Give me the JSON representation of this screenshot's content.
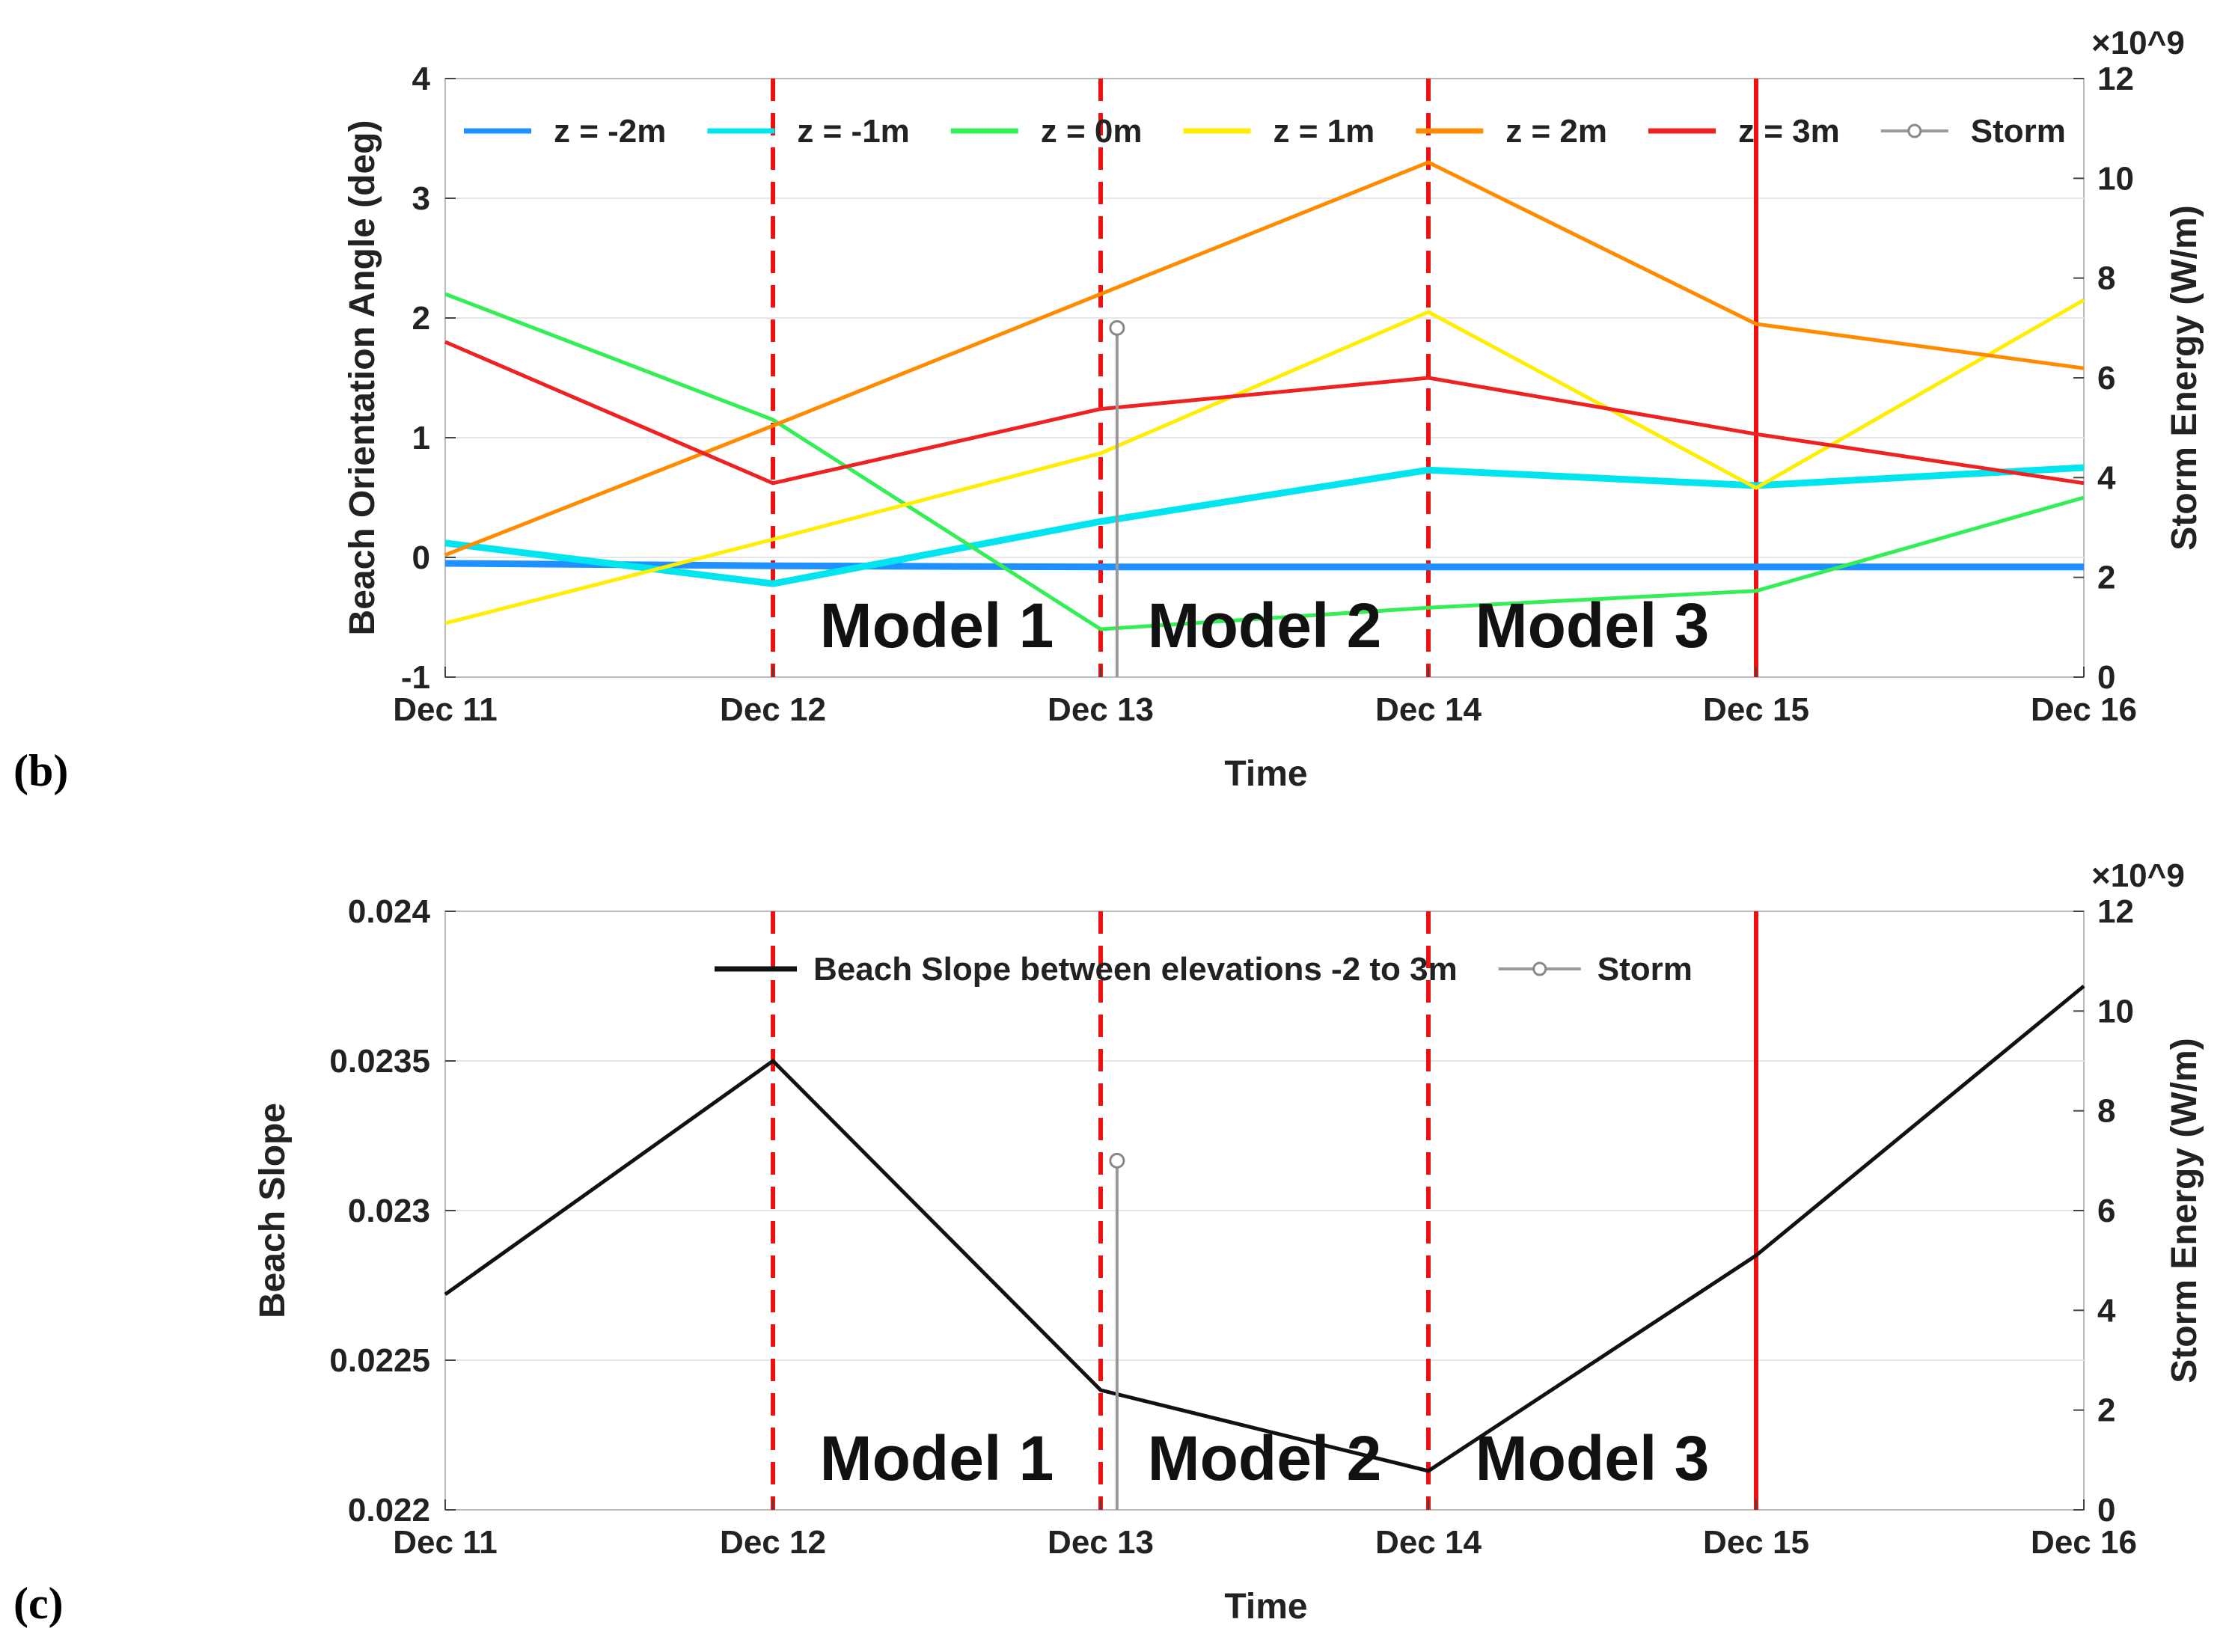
{
  "chart_data": [
    {
      "panel": "(b)",
      "type": "line",
      "xlabel": "Time",
      "ylabel": "Beach Orientation Angle (deg)",
      "ylabel_right": "Storm Energy (W/m)",
      "right_multiplier": "×10^9",
      "categories": [
        "Dec 11",
        "Dec 12",
        "Dec 13",
        "Dec 14",
        "Dec 15",
        "Dec 16"
      ],
      "ylim": [
        -1,
        4
      ],
      "yticks": [
        "-1",
        "0",
        "1",
        "2",
        "3",
        "4"
      ],
      "ylim_right": [
        0,
        12
      ],
      "yticks_right": [
        "0",
        "2",
        "4",
        "6",
        "8",
        "10",
        "12"
      ],
      "grid": true,
      "legend_placement": "top",
      "series": [
        {
          "name": "z = -2m",
          "color": "#1e90ff",
          "width": "thick",
          "values": [
            -0.05,
            -0.07,
            -0.08,
            -0.08,
            -0.08,
            -0.08
          ]
        },
        {
          "name": "z = -1m",
          "color": "#00e5ee",
          "width": "thick",
          "values": [
            0.12,
            -0.22,
            0.3,
            0.73,
            0.6,
            0.75
          ]
        },
        {
          "name": "z = 0m",
          "color": "#33ee55",
          "width": "thin",
          "values": [
            2.2,
            1.15,
            -0.6,
            -0.42,
            -0.28,
            0.5
          ]
        },
        {
          "name": "z = 1m",
          "color": "#ffee00",
          "width": "thin",
          "values": [
            -0.55,
            0.15,
            0.87,
            2.05,
            0.58,
            2.15
          ]
        },
        {
          "name": "z = 2m",
          "color": "#ff8c00",
          "width": "thin",
          "values": [
            0.02,
            1.1,
            2.2,
            3.3,
            1.95,
            1.58
          ]
        },
        {
          "name": "z = 3m",
          "color": "#ee2222",
          "width": "thin",
          "values": [
            1.8,
            0.62,
            1.24,
            1.5,
            1.03,
            0.62
          ]
        }
      ],
      "storm": {
        "name": "Storm",
        "color": "#999999",
        "x": 2.05,
        "energy": 7.0
      },
      "vlines_dashed": [
        1,
        2,
        3
      ],
      "vline_solid": 4,
      "model_labels": [
        {
          "text": "Model 1",
          "x": 1.5
        },
        {
          "text": "Model 2",
          "x": 2.5
        },
        {
          "text": "Model 3",
          "x": 3.5
        }
      ]
    },
    {
      "panel": "(c)",
      "type": "line",
      "xlabel": "Time",
      "ylabel": "Beach Slope",
      "ylabel_right": "Storm Energy (W/m)",
      "right_multiplier": "×10^9",
      "categories": [
        "Dec 11",
        "Dec 12",
        "Dec 13",
        "Dec 14",
        "Dec 15",
        "Dec 16"
      ],
      "ylim": [
        0.022,
        0.024
      ],
      "yticks": [
        "0.022",
        "0.0225",
        "0.023",
        "0.0235",
        "0.024"
      ],
      "ylim_right": [
        0,
        12
      ],
      "yticks_right": [
        "0",
        "2",
        "4",
        "6",
        "8",
        "10",
        "12"
      ],
      "grid": true,
      "legend_placement": "top",
      "series": [
        {
          "name": "Beach Slope between elevations -2 to 3m",
          "color": "#111111",
          "width": "thin",
          "values": [
            0.02272,
            0.0235,
            0.0224,
            0.02213,
            0.02285,
            0.02375
          ]
        }
      ],
      "storm": {
        "name": "Storm",
        "color": "#999999",
        "x": 2.05,
        "energy": 7.0
      },
      "vlines_dashed": [
        1,
        2,
        3
      ],
      "vline_solid": 4,
      "model_labels": [
        {
          "text": "Model 1",
          "x": 1.5
        },
        {
          "text": "Model 2",
          "x": 2.5
        },
        {
          "text": "Model 3",
          "x": 3.5
        }
      ]
    }
  ]
}
